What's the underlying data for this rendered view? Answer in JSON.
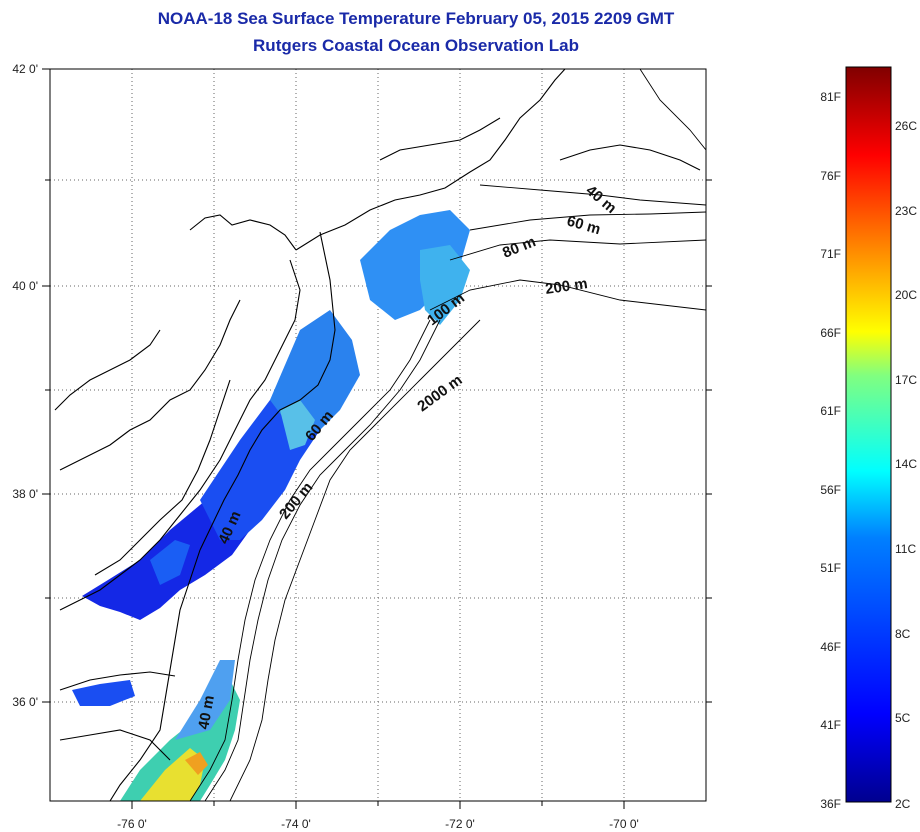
{
  "title": {
    "line1": "NOAA-18 Sea Surface Temperature February 05, 2015 2209 GMT",
    "line2": "Rutgers Coastal Ocean Observation Lab"
  },
  "map": {
    "lon_ticks": [
      "-76 0'",
      "-74 0'",
      "-72 0'",
      "-70 0'"
    ],
    "lat_ticks": [
      "42 0'",
      "40 0'",
      "38 0'",
      "36 0'"
    ],
    "isobath_labels": [
      "40 m",
      "60 m",
      "80 m",
      "200 m",
      "100 m",
      "2000 m",
      "60 m",
      "200 m",
      "40 m",
      "40 m"
    ]
  },
  "colorbar": {
    "f_labels": [
      "81F",
      "76F",
      "71F",
      "66F",
      "61F",
      "56F",
      "51F",
      "46F",
      "41F",
      "36F"
    ],
    "c_labels": [
      "26C",
      "23C",
      "20C",
      "17C",
      "14C",
      "11C",
      "8C",
      "5C",
      "2C"
    ],
    "colors": [
      "#00008f",
      "#0000ff",
      "#0080ff",
      "#00ffff",
      "#80ff80",
      "#ffff00",
      "#ff8000",
      "#ff0000",
      "#800000"
    ]
  }
}
